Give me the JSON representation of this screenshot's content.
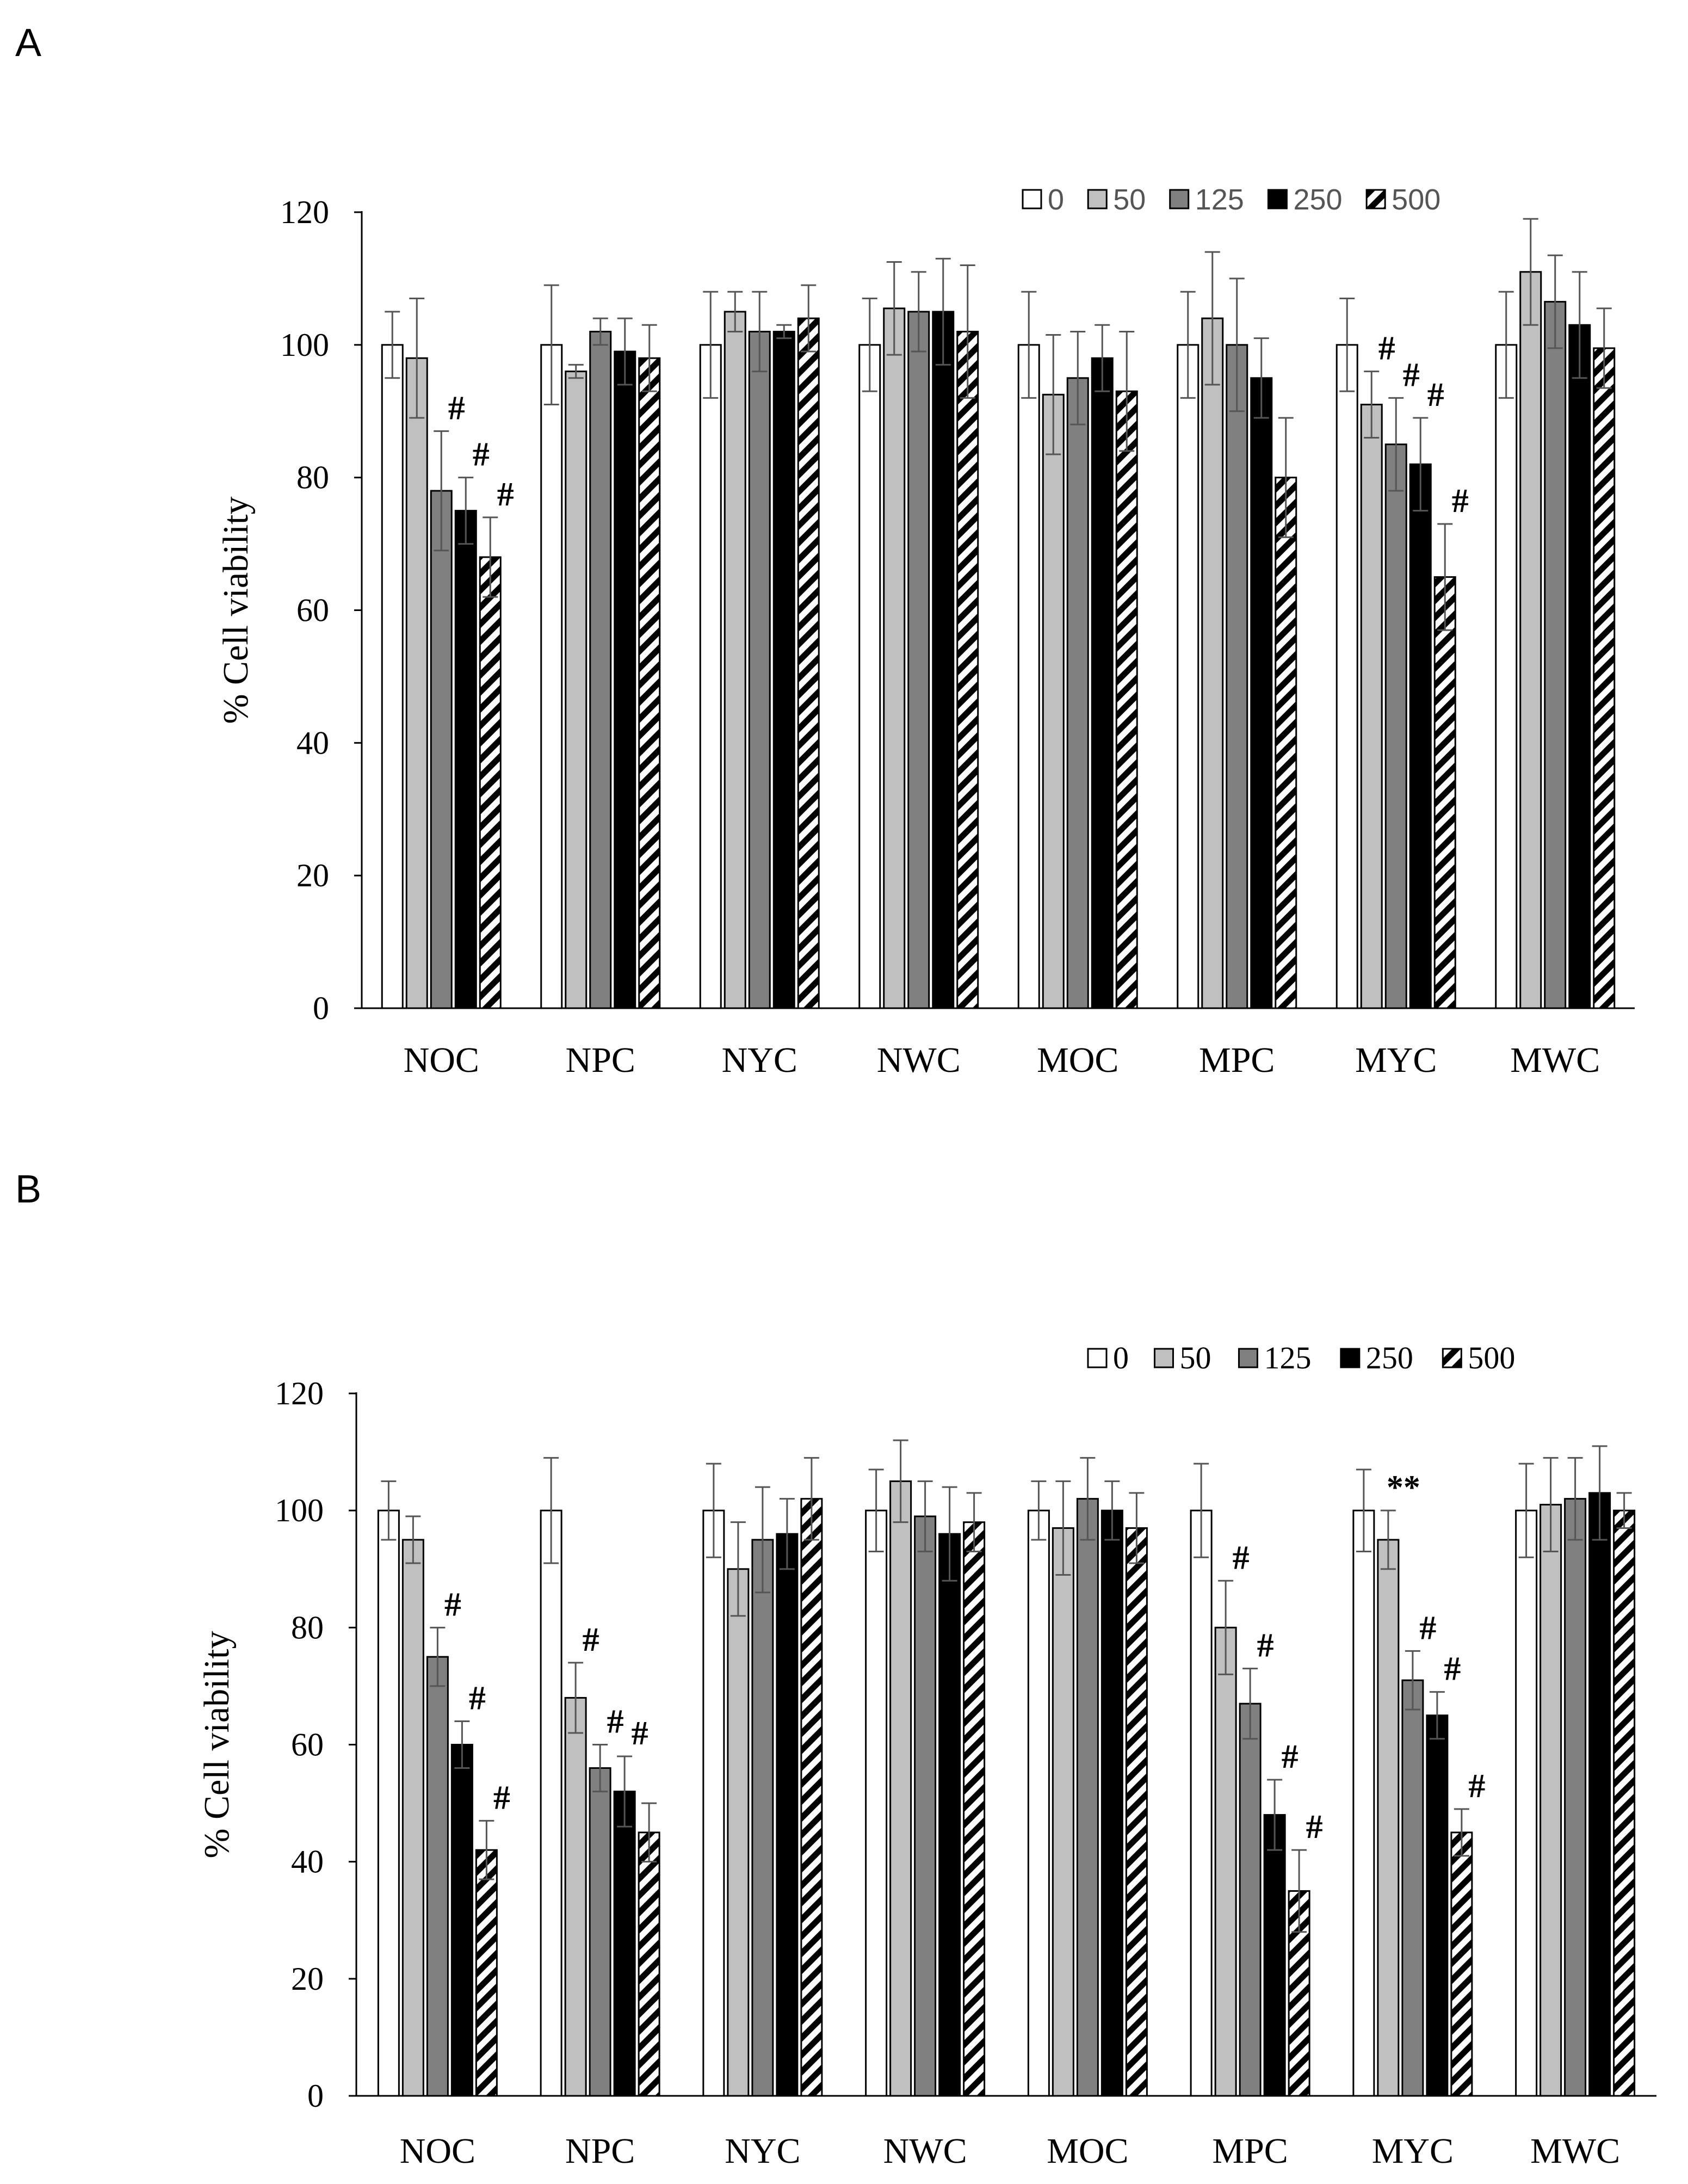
{
  "panels": [
    {
      "letter": "A",
      "chart_data": {
        "type": "bar",
        "ylabel": "% Cell viability",
        "ylim": [
          0,
          120
        ],
        "yticks": [
          0,
          20,
          40,
          60,
          80,
          100,
          120
        ],
        "categories": [
          "NOC",
          "NPC",
          "NYC",
          "NWC",
          "MOC",
          "MPC",
          "MYC",
          "MWC"
        ],
        "legend_position": "top-right",
        "series": [
          {
            "name": "0",
            "values": [
              100,
              100,
              100,
              100,
              100,
              100,
              100,
              100
            ],
            "errors": [
              5,
              9,
              8,
              7,
              8,
              8,
              7,
              8
            ]
          },
          {
            "name": "50",
            "values": [
              98,
              96,
              105,
              105.5,
              92.5,
              104,
              91,
              111
            ],
            "errors": [
              9,
              1,
              3,
              7,
              9,
              10,
              5,
              8
            ]
          },
          {
            "name": "125",
            "values": [
              78,
              102,
              102,
              105,
              95,
              100,
              85,
              106.5
            ],
            "errors": [
              9,
              2,
              6,
              6,
              7,
              10,
              7,
              7
            ]
          },
          {
            "name": "250",
            "values": [
              75,
              99,
              102,
              105,
              98,
              95,
              82,
              103
            ],
            "errors": [
              5,
              5,
              1,
              8,
              5,
              6,
              7,
              8
            ]
          },
          {
            "name": "500",
            "values": [
              68,
              98,
              104,
              102,
              93,
              80,
              65,
              99.5
            ],
            "errors": [
              6,
              5,
              5,
              10,
              9,
              9,
              8,
              6
            ]
          }
        ],
        "annotations": [
          {
            "category": "NOC",
            "series": "125",
            "text": "#"
          },
          {
            "category": "NOC",
            "series": "250",
            "text": "#"
          },
          {
            "category": "NOC",
            "series": "500",
            "text": "#"
          },
          {
            "category": "MYC",
            "series": "50",
            "text": "#"
          },
          {
            "category": "MYC",
            "series": "125",
            "text": "#"
          },
          {
            "category": "MYC",
            "series": "250",
            "text": "#"
          },
          {
            "category": "MYC",
            "series": "500",
            "text": "#"
          }
        ]
      }
    },
    {
      "letter": "B",
      "chart_data": {
        "type": "bar",
        "ylabel": "% Cell viability",
        "ylim": [
          0,
          120
        ],
        "yticks": [
          0,
          20,
          40,
          60,
          80,
          100,
          120
        ],
        "categories": [
          "NOC",
          "NPC",
          "NYC",
          "NWC",
          "MOC",
          "MPC",
          "MYC",
          "MWC"
        ],
        "legend_position": "top-right",
        "series": [
          {
            "name": "0",
            "values": [
              100,
              100,
              100,
              100,
              100,
              100,
              100,
              100
            ],
            "errors": [
              5,
              9,
              8,
              7,
              5,
              8,
              7,
              8
            ]
          },
          {
            "name": "50",
            "values": [
              95,
              68,
              90,
              105,
              97,
              80,
              95,
              101
            ],
            "errors": [
              4,
              6,
              8,
              7,
              8,
              8,
              5,
              8
            ]
          },
          {
            "name": "125",
            "values": [
              75,
              56,
              95,
              99,
              102,
              67,
              71,
              102
            ],
            "errors": [
              5,
              4,
              9,
              6,
              7,
              6,
              5,
              7
            ]
          },
          {
            "name": "250",
            "values": [
              60,
              52,
              96,
              96,
              100,
              48,
              65,
              103
            ],
            "errors": [
              4,
              6,
              6,
              8,
              5,
              6,
              4,
              8
            ]
          },
          {
            "name": "500",
            "values": [
              42,
              45,
              102,
              98,
              97,
              35,
              45,
              100
            ],
            "errors": [
              5,
              5,
              7,
              5,
              6,
              7,
              4,
              3
            ]
          }
        ],
        "annotations": [
          {
            "category": "NOC",
            "series": "125",
            "text": "#"
          },
          {
            "category": "NOC",
            "series": "250",
            "text": "#"
          },
          {
            "category": "NOC",
            "series": "500",
            "text": "#"
          },
          {
            "category": "NPC",
            "series": "50",
            "text": "#"
          },
          {
            "category": "NPC",
            "series": "125",
            "text": "#"
          },
          {
            "category": "NPC",
            "series": "250",
            "text": "#"
          },
          {
            "category": "MPC",
            "series": "50",
            "text": "#"
          },
          {
            "category": "MPC",
            "series": "125",
            "text": "#"
          },
          {
            "category": "MPC",
            "series": "250",
            "text": "#"
          },
          {
            "category": "MPC",
            "series": "500",
            "text": "#"
          },
          {
            "category": "MYC",
            "series": "50",
            "text": "**"
          },
          {
            "category": "MYC",
            "series": "125",
            "text": "#"
          },
          {
            "category": "MYC",
            "series": "250",
            "text": "#"
          },
          {
            "category": "MYC",
            "series": "500",
            "text": "#"
          }
        ]
      }
    }
  ],
  "series_styles": [
    {
      "name": "0",
      "fill": "#ffffff",
      "pattern": "none"
    },
    {
      "name": "50",
      "fill": "#c0c0c0",
      "pattern": "none"
    },
    {
      "name": "125",
      "fill": "#808080",
      "pattern": "none"
    },
    {
      "name": "250",
      "fill": "#000000",
      "pattern": "none"
    },
    {
      "name": "500",
      "fill": "#ffffff",
      "pattern": "diagonal-black-stripes"
    }
  ]
}
